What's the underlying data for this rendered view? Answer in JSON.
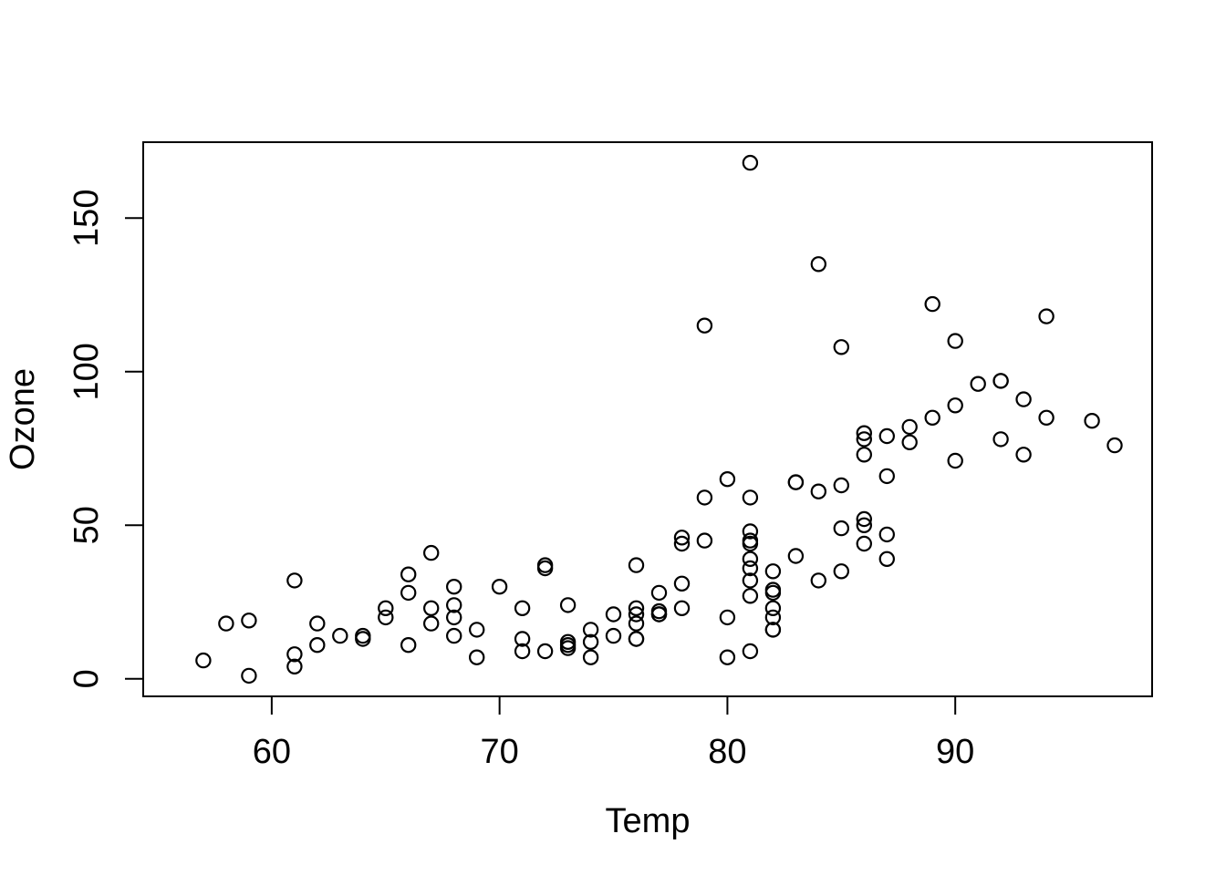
{
  "colors": {
    "background": "#ffffff",
    "foreground": "#000000"
  },
  "chart_data": {
    "type": "scatter",
    "title": "",
    "xlabel": "Temp",
    "ylabel": "Ozone",
    "x_ticks": [
      60,
      70,
      80,
      90
    ],
    "y_ticks": [
      0,
      50,
      100,
      150
    ],
    "xlim": [
      54.36,
      98.64
    ],
    "ylim": [
      -5.7,
      174.7
    ],
    "grid": false,
    "legend": "none",
    "point_style": {
      "shape": "open-circle",
      "color": "#000000"
    },
    "x": [
      67,
      72,
      74,
      62,
      66,
      65,
      59,
      61,
      74,
      69,
      66,
      68,
      58,
      64,
      66,
      57,
      68,
      62,
      59,
      73,
      61,
      61,
      67,
      81,
      79,
      76,
      82,
      90,
      87,
      82,
      77,
      72,
      65,
      73,
      76,
      84,
      85,
      81,
      83,
      83,
      88,
      92,
      92,
      89,
      73,
      81,
      80,
      81,
      82,
      84,
      87,
      85,
      74,
      86,
      85,
      82,
      86,
      88,
      86,
      83,
      81,
      81,
      81,
      82,
      86,
      85,
      87,
      89,
      90,
      90,
      86,
      82,
      80,
      77,
      79,
      76,
      78,
      78,
      77,
      72,
      79,
      81,
      86,
      97,
      94,
      96,
      94,
      91,
      92,
      93,
      93,
      87,
      84,
      80,
      78,
      75,
      73,
      81,
      76,
      77,
      71,
      71,
      78,
      67,
      76,
      68,
      82,
      64,
      71,
      81,
      69,
      63,
      70,
      75,
      76,
      68
    ],
    "y": [
      41,
      36,
      12,
      18,
      28,
      23,
      19,
      8,
      7,
      16,
      11,
      14,
      18,
      14,
      34,
      6,
      30,
      11,
      1,
      11,
      4,
      32,
      23,
      45,
      115,
      37,
      29,
      71,
      39,
      23,
      21,
      37,
      20,
      12,
      13,
      135,
      49,
      32,
      64,
      40,
      77,
      97,
      97,
      85,
      10,
      27,
      7,
      48,
      35,
      61,
      79,
      63,
      16,
      80,
      108,
      20,
      52,
      82,
      50,
      64,
      59,
      39,
      9,
      16,
      78,
      35,
      66,
      122,
      89,
      110,
      44,
      28,
      65,
      22,
      59,
      23,
      31,
      44,
      21,
      9,
      45,
      168,
      73,
      76,
      118,
      84,
      85,
      96,
      78,
      73,
      91,
      47,
      32,
      20,
      23,
      21,
      24,
      44,
      21,
      28,
      9,
      13,
      46,
      18,
      13,
      24,
      16,
      13,
      23,
      36,
      7,
      14,
      30,
      14,
      18,
      20
    ]
  }
}
